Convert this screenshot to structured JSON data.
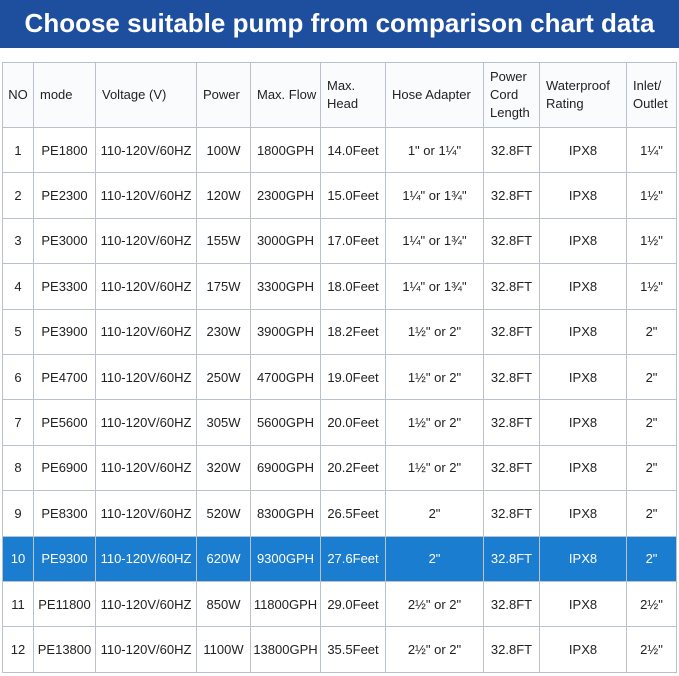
{
  "header": {
    "title": "Choose suitable pump from comparison chart data"
  },
  "table": {
    "columns": [
      "NO",
      "mode",
      "Voltage (V)",
      "Power",
      "Max. Flow",
      "Max. Head",
      "Hose Adapter",
      "Power Cord Length",
      "Waterproof Rating",
      "Inlet/ Outlet"
    ],
    "rows": [
      [
        "1",
        "PE1800",
        "110-120V/60HZ",
        "100W",
        "1800GPH",
        "14.0Feet",
        "1\" or 1¼\"",
        "32.8FT",
        "IPX8",
        "1¼\""
      ],
      [
        "2",
        "PE2300",
        "110-120V/60HZ",
        "120W",
        "2300GPH",
        "15.0Feet",
        "1¼\" or 1¾\"",
        "32.8FT",
        "IPX8",
        "1½\""
      ],
      [
        "3",
        "PE3000",
        "110-120V/60HZ",
        "155W",
        "3000GPH",
        "17.0Feet",
        "1¼\" or 1¾\"",
        "32.8FT",
        "IPX8",
        "1½\""
      ],
      [
        "4",
        "PE3300",
        "110-120V/60HZ",
        "175W",
        "3300GPH",
        "18.0Feet",
        "1¼\" or 1¾\"",
        "32.8FT",
        "IPX8",
        "1½\""
      ],
      [
        "5",
        "PE3900",
        "110-120V/60HZ",
        "230W",
        "3900GPH",
        "18.2Feet",
        "1½\" or 2\"",
        "32.8FT",
        "IPX8",
        "2\""
      ],
      [
        "6",
        "PE4700",
        "110-120V/60HZ",
        "250W",
        "4700GPH",
        "19.0Feet",
        "1½\" or 2\"",
        "32.8FT",
        "IPX8",
        "2\""
      ],
      [
        "7",
        "PE5600",
        "110-120V/60HZ",
        "305W",
        "5600GPH",
        "20.0Feet",
        "1½\" or 2\"",
        "32.8FT",
        "IPX8",
        "2\""
      ],
      [
        "8",
        "PE6900",
        "110-120V/60HZ",
        "320W",
        "6900GPH",
        "20.2Feet",
        "1½\" or 2\"",
        "32.8FT",
        "IPX8",
        "2\""
      ],
      [
        "9",
        "PE8300",
        "110-120V/60HZ",
        "520W",
        "8300GPH",
        "26.5Feet",
        "2\"",
        "32.8FT",
        "IPX8",
        "2\""
      ],
      [
        "10",
        "PE9300",
        "110-120V/60HZ",
        "620W",
        "9300GPH",
        "27.6Feet",
        "2\"",
        "32.8FT",
        "IPX8",
        "2\""
      ],
      [
        "11",
        "PE11800",
        "110-120V/60HZ",
        "850W",
        "11800GPH",
        "29.0Feet",
        "2½\" or 2\"",
        "32.8FT",
        "IPX8",
        "2½\""
      ],
      [
        "12",
        "PE13800",
        "110-120V/60HZ",
        "1100W",
        "13800GPH",
        "35.5Feet",
        "2½\" or 2\"",
        "32.8FT",
        "IPX8",
        "2½\""
      ]
    ]
  }
}
